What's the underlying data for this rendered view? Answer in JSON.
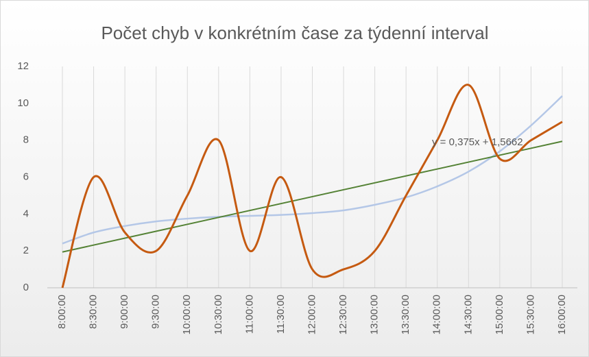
{
  "chart_data": {
    "type": "line",
    "title": "Počet chyb v konkrétním čase za týdenní interval",
    "categories": [
      "8:00:00",
      "8:30:00",
      "9:00:00",
      "9:30:00",
      "10:00:00",
      "10:30:00",
      "11:00:00",
      "11:30:00",
      "12:00:00",
      "12:30:00",
      "13:00:00",
      "13:30:00",
      "14:00:00",
      "14:30:00",
      "15:00:00",
      "15:30:00",
      "16:00:00"
    ],
    "values": [
      0,
      6,
      3,
      2,
      5,
      8,
      2,
      6,
      1,
      1,
      2,
      5,
      8,
      11,
      7,
      8,
      9
    ],
    "color": "#c55a11",
    "smooth": true,
    "trend_curve": {
      "color": "#b4c7e7",
      "values": [
        2.4,
        3.0,
        3.35,
        3.6,
        3.75,
        3.85,
        3.9,
        3.95,
        4.05,
        4.2,
        4.5,
        4.9,
        5.5,
        6.3,
        7.4,
        8.8,
        10.4
      ]
    },
    "trendline": {
      "color": "#548235",
      "slope": 0.375,
      "intercept": 1.5662,
      "label": "y = 0,375x + 1,5662"
    },
    "ylim": [
      0,
      12
    ],
    "yticks": [
      0,
      2,
      4,
      6,
      8,
      10,
      12
    ],
    "grid": true
  }
}
